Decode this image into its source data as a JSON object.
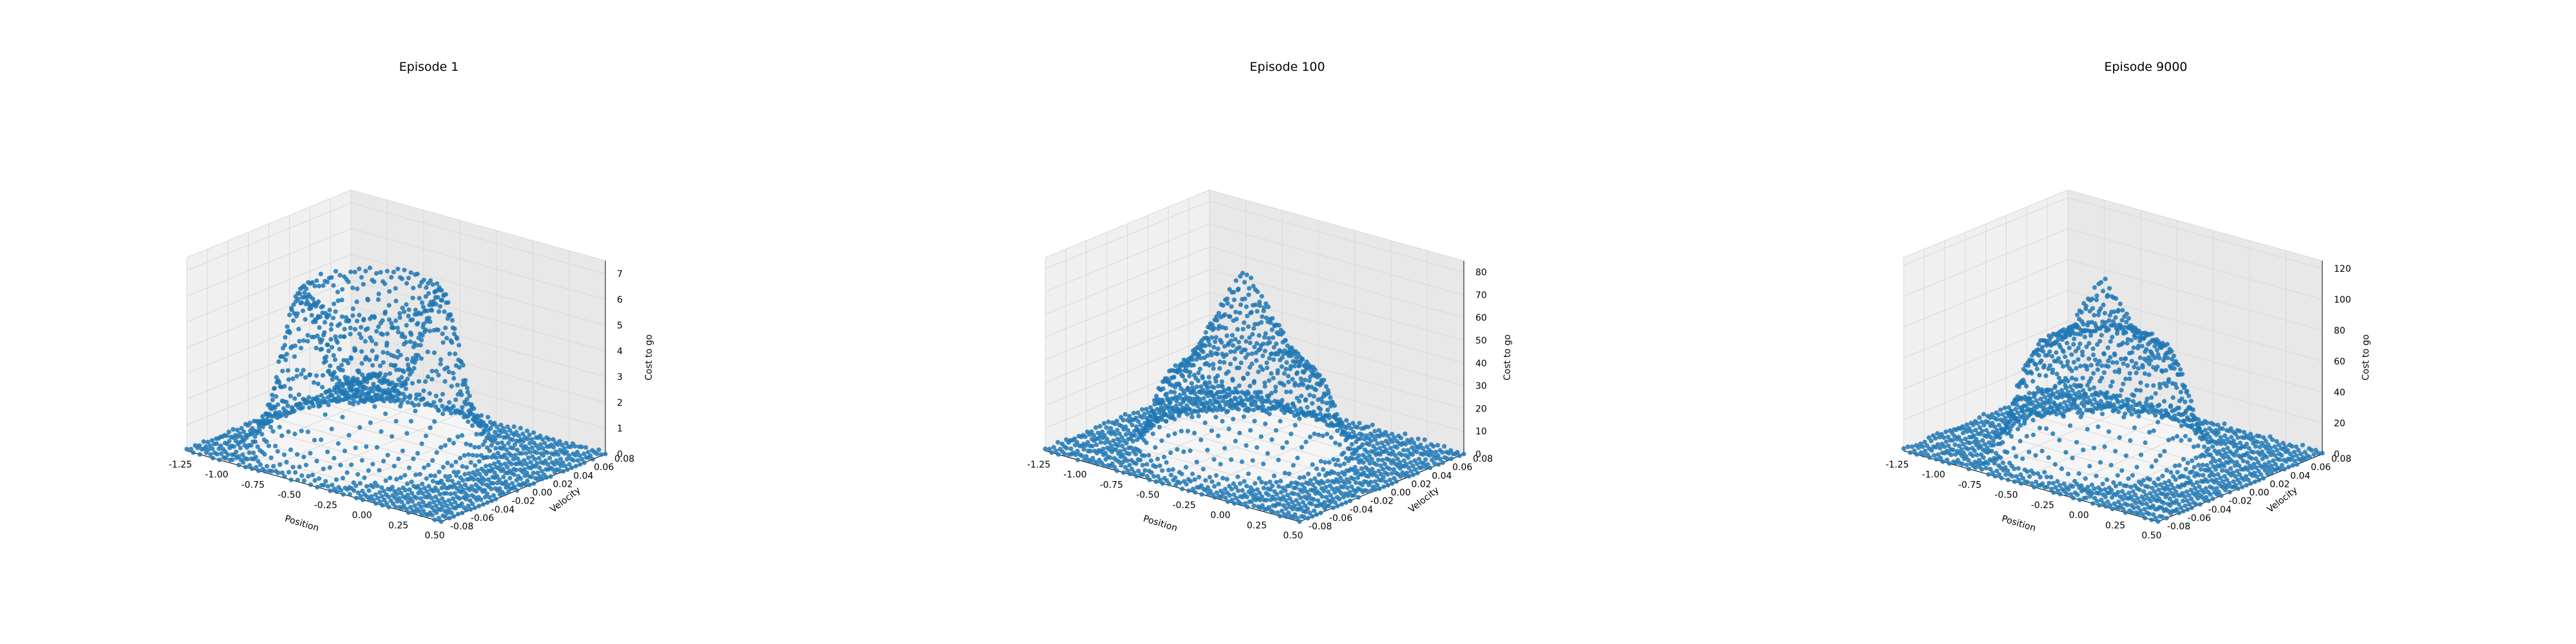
{
  "colors": {
    "points": "#1f77b4",
    "pane_left": "#f0f0f0",
    "pane_right": "#e8e8e8",
    "pane_floor": "#f5f5f5",
    "grid": "#d8d8d8"
  },
  "chart_data": [
    {
      "type": "scatter",
      "title": "Episode 1",
      "xlabel": "Position",
      "ylabel": "Velocity",
      "zlabel": "Cost to go",
      "xlim": [
        -1.25,
        0.5
      ],
      "ylim": [
        -0.08,
        0.08
      ],
      "zlim": [
        0,
        7.5
      ],
      "xticks": [
        "-1.25",
        "-1.00",
        "-0.75",
        "-0.50",
        "-0.25",
        "0.00",
        "0.25",
        "0.50"
      ],
      "yticks": [
        "-0.08",
        "-0.06",
        "-0.04",
        "-0.02",
        "0.00",
        "0.02",
        "0.04",
        "0.06",
        "0.08"
      ],
      "zticks": [
        "0",
        "1",
        "2",
        "3",
        "4",
        "5",
        "6",
        "7"
      ],
      "surface": {
        "grid": "40x40 tiles over position x velocity",
        "shape": "ring",
        "peak": 7.0,
        "noise": 0.6,
        "ring_center": [
          -0.55,
          0.0
        ],
        "ring_radius": 0.45
      },
      "grid": true
    },
    {
      "type": "scatter",
      "title": "Episode 100",
      "xlabel": "Position",
      "ylabel": "Velocity",
      "zlabel": "Cost to go",
      "xlim": [
        -1.25,
        0.5
      ],
      "ylim": [
        -0.08,
        0.08
      ],
      "zlim": [
        0,
        85
      ],
      "xticks": [
        "-1.25",
        "-1.00",
        "-0.75",
        "-0.50",
        "-0.25",
        "0.00",
        "0.25",
        "0.50"
      ],
      "yticks": [
        "-0.08",
        "-0.06",
        "-0.04",
        "-0.02",
        "0.00",
        "0.02",
        "0.04",
        "0.06",
        "0.08"
      ],
      "zticks": [
        "0",
        "10",
        "20",
        "30",
        "40",
        "50",
        "60",
        "70",
        "80"
      ],
      "surface": {
        "grid": "40x40 tiles over position x velocity",
        "shape": "ridge",
        "peak": 75,
        "noise": 2.0,
        "ridge_center": [
          -0.5,
          0.0
        ]
      },
      "grid": true
    },
    {
      "type": "scatter",
      "title": "Episode 9000",
      "xlabel": "Position",
      "ylabel": "Velocity",
      "zlabel": "Cost to go",
      "xlim": [
        -1.25,
        0.5
      ],
      "ylim": [
        -0.08,
        0.08
      ],
      "zlim": [
        0,
        125
      ],
      "xticks": [
        "-1.25",
        "-1.00",
        "-0.75",
        "-0.50",
        "-0.25",
        "0.00",
        "0.25",
        "0.50"
      ],
      "yticks": [
        "-0.08",
        "-0.06",
        "-0.04",
        "-0.02",
        "0.00",
        "0.02",
        "0.04",
        "0.06",
        "0.08"
      ],
      "zticks": [
        "0",
        "20",
        "40",
        "60",
        "80",
        "100",
        "120"
      ],
      "surface": {
        "grid": "40x40 tiles over position x velocity",
        "shape": "spiral",
        "peak": 110,
        "noise": 1.5,
        "ridge_center": [
          -0.45,
          0.0
        ]
      },
      "grid": true
    }
  ]
}
